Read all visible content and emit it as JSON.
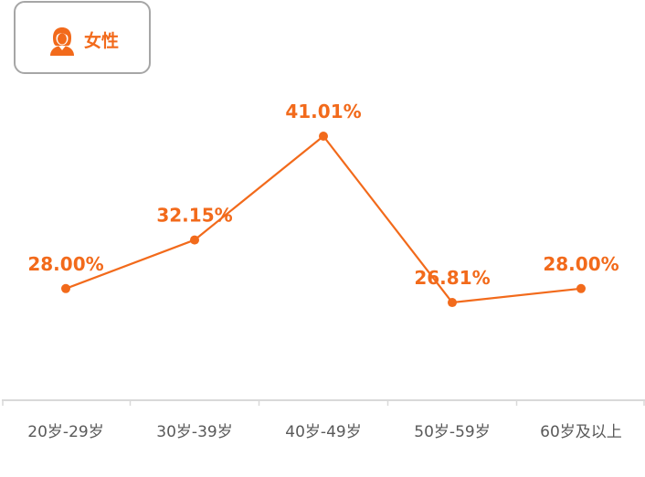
{
  "legend": {
    "label": "女性",
    "icon": "female-user-icon"
  },
  "colors": {
    "series": "#f26a1b",
    "axis": "#d9d9d9",
    "tick_text": "#595959",
    "legend_border": "#a6a6a6"
  },
  "chart_data": {
    "type": "line",
    "categories": [
      "20岁-29岁",
      "30岁-39岁",
      "40岁-49岁",
      "50岁-59岁",
      "60岁及以上"
    ],
    "series": [
      {
        "name": "女性",
        "values": [
          28.0,
          32.15,
          41.01,
          26.81,
          28.0
        ],
        "labels": [
          "28.00%",
          "32.15%",
          "41.01%",
          "26.81%",
          "28.00%"
        ]
      }
    ],
    "title": "",
    "xlabel": "",
    "ylabel": "",
    "grid": false,
    "legend_position": "top-left"
  }
}
